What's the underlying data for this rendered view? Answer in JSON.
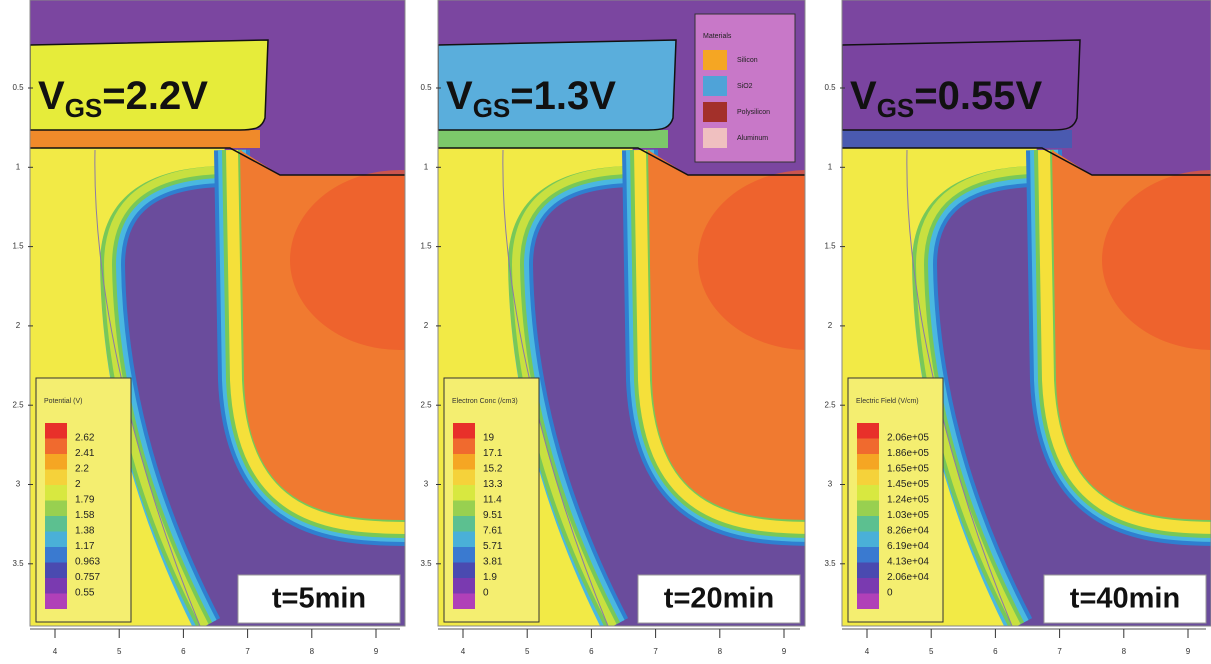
{
  "panels": [
    {
      "label": {
        "v": "V",
        "sub": "GS",
        "rest": "=2.2V"
      },
      "time": "t=5min",
      "legend": {
        "title": "Potential (V)",
        "labels": [
          "2.62",
          "2.41",
          "2.2",
          "2",
          "1.79",
          "1.58",
          "1.38",
          "1.17",
          "0.963",
          "0.757",
          "0.55"
        ]
      },
      "yticks": [
        "0.5",
        "1",
        "1.5",
        "2",
        "2.5",
        "3",
        "3.5"
      ],
      "xticks": [
        "4",
        "5",
        "6",
        "7",
        "8",
        "9"
      ]
    },
    {
      "label": {
        "v": "V",
        "sub": "GS",
        "rest": "=1.3V"
      },
      "time": "t=20min",
      "legend": {
        "title": "Electron Conc (/cm3)",
        "labels": [
          "19",
          "17.1",
          "15.2",
          "13.3",
          "11.4",
          "9.51",
          "7.61",
          "5.71",
          "3.81",
          "1.9",
          "0"
        ]
      },
      "yticks": [
        "0.5",
        "1",
        "1.5",
        "2",
        "2.5",
        "3",
        "3.5"
      ],
      "xticks": [
        "4",
        "5",
        "6",
        "7",
        "8",
        "9"
      ]
    },
    {
      "label": {
        "v": "V",
        "sub": "GS",
        "rest": "=0.55V"
      },
      "time": "t=40min",
      "legend": {
        "title": "Electric Field (V/cm)",
        "labels": [
          "2.06e+05",
          "1.86e+05",
          "1.65e+05",
          "1.45e+05",
          "1.24e+05",
          "1.03e+05",
          "8.26e+04",
          "6.19e+04",
          "4.13e+04",
          "2.06e+04",
          "0"
        ]
      },
      "yticks": [
        "0.5",
        "1",
        "1.5",
        "2",
        "2.5",
        "3",
        "3.5"
      ],
      "xticks": [
        "4",
        "5",
        "6",
        "7",
        "8",
        "9"
      ]
    }
  ],
  "materials": {
    "title": "Materials",
    "items": [
      "Silicon",
      "SiO2",
      "Polysilicon",
      "Aluminum"
    ]
  }
}
